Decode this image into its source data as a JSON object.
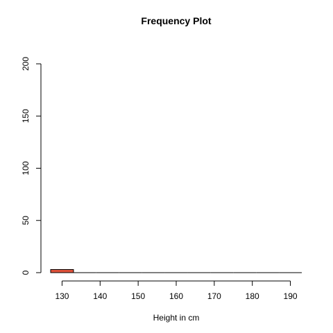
{
  "chart_data": {
    "type": "bar",
    "title": "Frequency Plot",
    "xlabel": "Height in cm",
    "ylabel": "",
    "bins": [
      {
        "start": 127,
        "end": 133,
        "value": 3
      },
      {
        "start": 133,
        "end": 139,
        "value": 0
      },
      {
        "start": 139,
        "end": 145,
        "value": 0
      },
      {
        "start": 145,
        "end": 151,
        "value": 0
      },
      {
        "start": 151,
        "end": 157,
        "value": 0
      },
      {
        "start": 157,
        "end": 163,
        "value": 0
      },
      {
        "start": 163,
        "end": 169,
        "value": 0
      },
      {
        "start": 169,
        "end": 175,
        "value": 0
      },
      {
        "start": 175,
        "end": 181,
        "value": 0
      },
      {
        "start": 181,
        "end": 187,
        "value": 0
      },
      {
        "start": 187,
        "end": 193,
        "value": 0
      }
    ],
    "x_ticks": [
      "130",
      "140",
      "150",
      "160",
      "170",
      "180",
      "190"
    ],
    "y_ticks": [
      "0",
      "50",
      "100",
      "150",
      "200"
    ],
    "xlim": [
      127,
      193
    ],
    "ylim": [
      0,
      200
    ],
    "grid": false,
    "colors": {
      "bar_fill": "#E0533B",
      "bar_stroke": "#000000"
    }
  }
}
